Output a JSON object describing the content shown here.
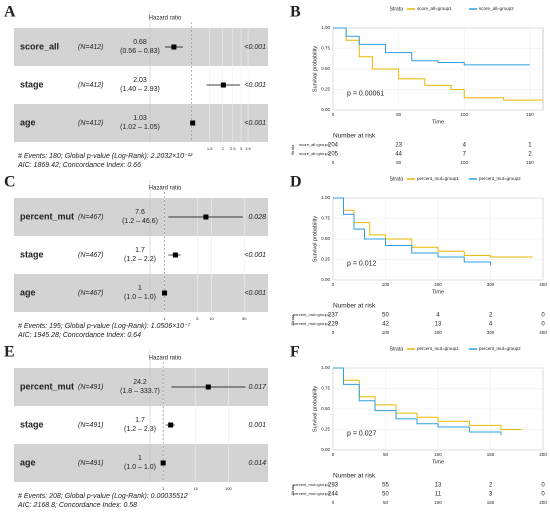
{
  "chart_data": [
    {
      "type": "forest",
      "panel_label": "A",
      "title": "Hazard ratio",
      "xlog": true,
      "xlim": [
        0.5,
        3.5
      ],
      "xticks": [
        1.5,
        2,
        2.5,
        3,
        3.5
      ],
      "reference_line": 1,
      "rows": [
        {
          "name": "score_all",
          "n_label": "(N=412)",
          "hr": 0.68,
          "ci_label": "(0.56 – 0.83)",
          "lo": 0.56,
          "hi": 0.83,
          "p": "<0.001"
        },
        {
          "name": "stage",
          "n_label": "(N=412)",
          "hr": 2.03,
          "ci_label": "(1.40 – 2.93)",
          "lo": 1.4,
          "hi": 2.93,
          "p": "<0.001"
        },
        {
          "name": "age",
          "n_label": "(N=412)",
          "hr": 1.03,
          "ci_label": "(1.02 – 1.05)",
          "lo": 1.02,
          "hi": 1.05,
          "p": "<0.001"
        }
      ],
      "footer": [
        "# Events: 180; Global p-value (Log-Rank): 2.2032×10⁻¹²",
        "AIC: 1869.42; Concordance Index: 0.66"
      ]
    },
    {
      "type": "survival",
      "panel_label": "B",
      "legend_title": "Strata",
      "ylabel": "Survival probability",
      "xlabel": "Time",
      "pvalue": "p = 0.00061",
      "risk_title": "Number at risk",
      "risk_strata_label": "Strata",
      "xlim": [
        0,
        160
      ],
      "xticks": [
        0,
        50,
        100,
        150
      ],
      "ylim": [
        0,
        1
      ],
      "yticks": [
        {
          "value": 0,
          "label": "0.00"
        },
        {
          "value": 0.25,
          "label": "0.25"
        },
        {
          "value": 0.5,
          "label": "0.50"
        },
        {
          "value": 0.75,
          "label": "0.75"
        },
        {
          "value": 1,
          "label": "1.00"
        }
      ],
      "series": [
        {
          "name": "score_all=group1",
          "color": "#E7B800",
          "x": [
            0,
            10,
            20,
            30,
            50,
            70,
            90,
            100,
            130,
            160
          ],
          "values": [
            1,
            0.85,
            0.65,
            0.5,
            0.38,
            0.3,
            0.25,
            0.15,
            0.12,
            0.12
          ],
          "risk": [
            204,
            23,
            4,
            1
          ]
        },
        {
          "name": "score_all=group2",
          "color": "#2E9FDF",
          "x": [
            0,
            10,
            20,
            40,
            60,
            80,
            100,
            150
          ],
          "values": [
            1,
            0.9,
            0.8,
            0.7,
            0.6,
            0.58,
            0.55,
            0.55
          ],
          "risk": [
            205,
            44,
            7,
            2
          ]
        }
      ]
    },
    {
      "type": "forest",
      "panel_label": "C",
      "title": "Hazard ratio",
      "xlog": true,
      "xlim": [
        0.8,
        60
      ],
      "xticks": [
        1,
        5,
        10,
        50
      ],
      "reference_line": 1,
      "rows": [
        {
          "name": "percent_mut",
          "n_label": "(N=467)",
          "hr": 7.6,
          "ci_label": "(1.2 – 46.6)",
          "lo": 1.2,
          "hi": 46.6,
          "p": "0.028"
        },
        {
          "name": "stage",
          "n_label": "(N=467)",
          "hr": 1.7,
          "ci_label": "(1.2 – 2.2)",
          "lo": 1.2,
          "hi": 2.2,
          "p": "<0.001"
        },
        {
          "name": "age",
          "n_label": "(N=467)",
          "hr": 1.0,
          "ci_label": "(1.0 – 1.0)",
          "lo": 1.0,
          "hi": 1.0,
          "p": "<0.001"
        }
      ],
      "footer": [
        "# Events: 195; Global p-value (Log-Rank): 1.0506×10⁻⁷",
        "AIC: 1945.28; Concordance Index: 0.64"
      ]
    },
    {
      "type": "survival",
      "panel_label": "D",
      "legend_title": "Strata",
      "ylabel": "Survival probability",
      "xlabel": "Time",
      "pvalue": "p = 0.012",
      "risk_title": "Number at risk",
      "risk_strata_label": "Strata",
      "xlim": [
        0,
        400
      ],
      "xticks": [
        0,
        100,
        200,
        300,
        400
      ],
      "ylim": [
        0,
        1
      ],
      "yticks": [
        {
          "value": 0,
          "label": "0.00"
        },
        {
          "value": 0.25,
          "label": "0.25"
        },
        {
          "value": 0.5,
          "label": "0.50"
        },
        {
          "value": 0.75,
          "label": "0.75"
        },
        {
          "value": 1,
          "label": "1.00"
        }
      ],
      "series": [
        {
          "name": "percent_mut=group1",
          "color": "#E7B800",
          "x": [
            0,
            20,
            40,
            70,
            100,
            150,
            200,
            250,
            300,
            380
          ],
          "values": [
            1,
            0.85,
            0.7,
            0.55,
            0.5,
            0.4,
            0.35,
            0.3,
            0.28,
            0.28
          ],
          "risk": [
            237,
            50,
            4,
            2,
            0
          ]
        },
        {
          "name": "percent_mut=group2",
          "color": "#2E9FDF",
          "x": [
            0,
            20,
            40,
            60,
            100,
            150,
            200,
            250,
            300
          ],
          "values": [
            1,
            0.8,
            0.62,
            0.5,
            0.42,
            0.33,
            0.28,
            0.22,
            0.18
          ],
          "risk": [
            229,
            42,
            13,
            4,
            0
          ]
        }
      ]
    },
    {
      "type": "forest",
      "panel_label": "E",
      "title": "Hazard ratio",
      "xlog": true,
      "xlim": [
        0.8,
        400
      ],
      "xticks": [
        1,
        10,
        100
      ],
      "reference_line": 1,
      "rows": [
        {
          "name": "percent_mut",
          "n_label": "(N=491)",
          "hr": 24.2,
          "ci_label": "(1.8 – 333.7)",
          "lo": 1.8,
          "hi": 333.7,
          "p": "0.017"
        },
        {
          "name": "stage",
          "n_label": "(N=491)",
          "hr": 1.7,
          "ci_label": "(1.2 – 2.3)",
          "lo": 1.2,
          "hi": 2.3,
          "p": "0.001"
        },
        {
          "name": "age",
          "n_label": "(N=491)",
          "hr": 1.0,
          "ci_label": "(1.0 – 1.0)",
          "lo": 1.0,
          "hi": 1.0,
          "p": "0.014"
        }
      ],
      "footer": [
        "# Events: 208; Global p-value (Log-Rank): 0.00035512",
        "AIC: 2168.8; Concordance Index: 0.58"
      ]
    },
    {
      "type": "survival",
      "panel_label": "F",
      "legend_title": "Strata",
      "ylabel": "Survival probability",
      "xlabel": "Time",
      "pvalue": "p = 0.027",
      "risk_title": "Number at risk",
      "risk_strata_label": "Strata",
      "xlim": [
        0,
        200
      ],
      "xticks": [
        0,
        50,
        100,
        150,
        200
      ],
      "ylim": [
        0,
        1
      ],
      "yticks": [
        {
          "value": 0,
          "label": "0.00"
        },
        {
          "value": 0.25,
          "label": "0.25"
        },
        {
          "value": 0.5,
          "label": "0.50"
        },
        {
          "value": 0.75,
          "label": "0.75"
        },
        {
          "value": 1,
          "label": "1.00"
        }
      ],
      "series": [
        {
          "name": "percent_mut=group1",
          "color": "#E7B800",
          "x": [
            0,
            10,
            25,
            40,
            60,
            80,
            100,
            130,
            160,
            180
          ],
          "values": [
            1,
            0.85,
            0.65,
            0.55,
            0.45,
            0.4,
            0.35,
            0.3,
            0.25,
            0.25
          ],
          "risk": [
            293,
            55,
            13,
            2,
            0
          ]
        },
        {
          "name": "percent_mut=group2",
          "color": "#2E9FDF",
          "x": [
            0,
            10,
            25,
            40,
            60,
            80,
            100,
            130,
            160
          ],
          "values": [
            1,
            0.8,
            0.6,
            0.48,
            0.38,
            0.32,
            0.28,
            0.22,
            0.18
          ],
          "risk": [
            244,
            50,
            11,
            3,
            0
          ]
        }
      ]
    }
  ]
}
